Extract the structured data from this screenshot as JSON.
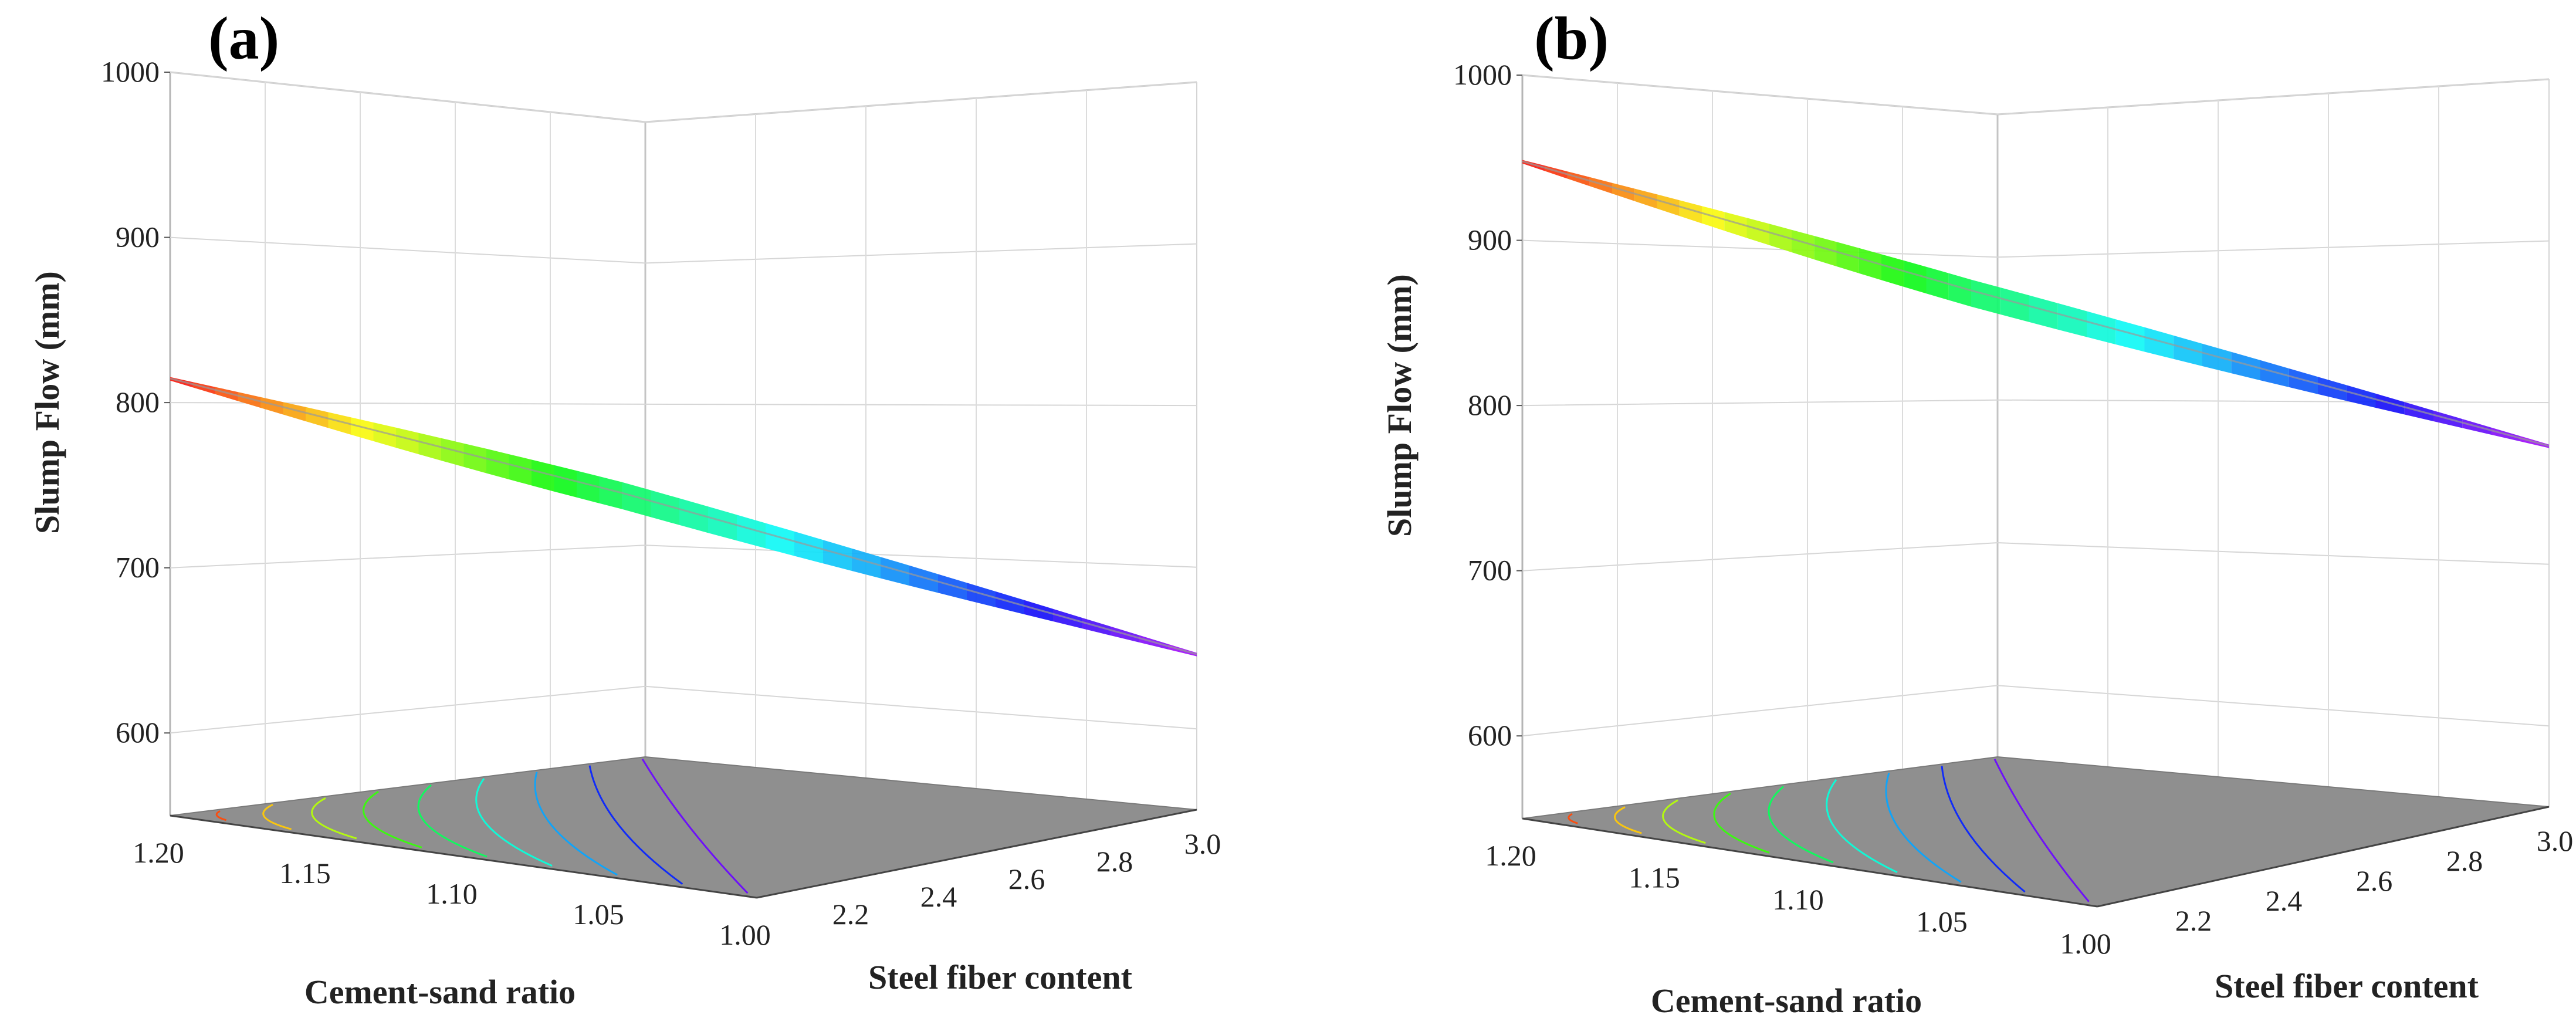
{
  "chart_data": [
    {
      "type": "surface3d",
      "panel_label": "(a)",
      "zlabel": "Slump Flow (mm)",
      "xlabel": "Cement-sand ratio",
      "ylabel": "Steel fiber content",
      "zlim": [
        550,
        1000
      ],
      "z_ticks": [
        600,
        700,
        800,
        900,
        1000
      ],
      "x_ticks": [
        "1.20",
        "1.15",
        "1.10",
        "1.05",
        "1.00"
      ],
      "y_ticks": [
        "2.2",
        "2.4",
        "2.6",
        "2.8",
        "3.0"
      ],
      "surface_range": [
        650,
        820
      ],
      "surface_max_point": {
        "cement_sand_ratio": 1.2,
        "steel_fiber_content": 2.0,
        "slump_flow": 820
      },
      "surface_min_point": {
        "cement_sand_ratio": 1.0,
        "steel_fiber_content": 3.0,
        "slump_flow": 650
      },
      "contour_levels": 9
    },
    {
      "type": "surface3d",
      "panel_label": "(b)",
      "zlabel": "Slump Flow (mm)",
      "xlabel": "Cement-sand ratio",
      "ylabel": "Steel fiber content",
      "zlim": [
        550,
        1000
      ],
      "z_ticks": [
        600,
        700,
        800,
        900,
        1000
      ],
      "x_ticks": [
        "1.20",
        "1.15",
        "1.10",
        "1.05",
        "1.00"
      ],
      "y_ticks": [
        "2.2",
        "2.4",
        "2.6",
        "2.8",
        "3.0"
      ],
      "surface_range": [
        780,
        950
      ],
      "surface_max_point": {
        "cement_sand_ratio": 1.2,
        "steel_fiber_content": 2.0,
        "slump_flow": 950
      },
      "surface_min_point": {
        "cement_sand_ratio": 1.0,
        "steel_fiber_content": 3.0,
        "slump_flow": 780
      },
      "contour_levels": 9
    }
  ]
}
